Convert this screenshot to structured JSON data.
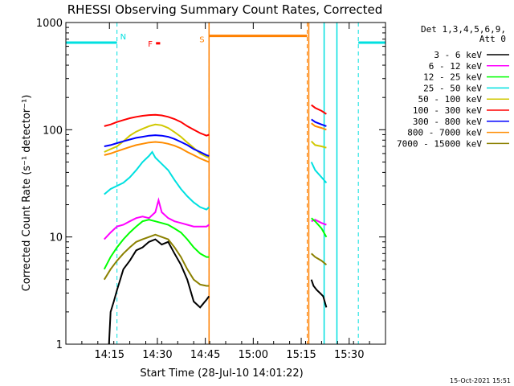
{
  "chart_data": {
    "type": "line",
    "title": "RHESSI Observing Summary Count Rates, Corrected",
    "xlabel": "Start Time (28-Jul-10 14:01:22)",
    "ylabel": "Corrected Count Rate (s⁻¹ detector⁻¹)",
    "yscale": "log",
    "ylim": [
      1,
      1000
    ],
    "xlim_minutes": [
      0,
      100
    ],
    "x_ticks": [
      {
        "label": "14:15",
        "minute": 13.63
      },
      {
        "label": "14:30",
        "minute": 28.63
      },
      {
        "label": "14:45",
        "minute": 43.63
      },
      {
        "label": "15:00",
        "minute": 58.63
      },
      {
        "label": "15:15",
        "minute": 73.63
      },
      {
        "label": "15:30",
        "minute": 88.63
      }
    ],
    "y_ticks": [
      {
        "label": "1",
        "value": 1
      },
      {
        "label": "10",
        "value": 10
      },
      {
        "label": "100",
        "value": 100
      },
      {
        "label": "1000",
        "value": 1000
      }
    ],
    "legend": {
      "placement": "right",
      "header": [
        "Det 1,3,4,5,6,9,",
        "Att 0"
      ]
    },
    "footer_timestamp": "15-Oct-2021 15:51",
    "flags": {
      "night": {
        "label": "N",
        "color": "#00e0e0",
        "value": 650,
        "intervals": [
          [
            0,
            16
          ],
          [
            91.5,
            100
          ]
        ],
        "boundaries": [
          16,
          91.5
        ]
      },
      "saa": {
        "label": "S",
        "color": "#ff8000",
        "value": 750,
        "interval": [
          44.8,
          75.5
        ],
        "boundaries": [
          44.8,
          75.5
        ]
      },
      "flare": {
        "label": "F",
        "color": "#ff0000",
        "value": 640,
        "interval": [
          28.2,
          29.5
        ]
      },
      "eclipse_edges": [
        44.8,
        76.0,
        80.8,
        84.8
      ]
    },
    "series": [
      {
        "name": "3 - 6 keV",
        "color": "#000000",
        "x": [
          13.5,
          14,
          15,
          16,
          17,
          18,
          20,
          22,
          24,
          26,
          28,
          30,
          32,
          34,
          36,
          38,
          40,
          42,
          44,
          44.8,
          76.8,
          77.5,
          78.5,
          79.5,
          80.5,
          81.5
        ],
        "values": [
          1.0,
          2.0,
          2.5,
          3.2,
          4.0,
          5.0,
          6.0,
          7.5,
          8.0,
          9.0,
          9.5,
          8.5,
          9.0,
          7.0,
          5.5,
          4.0,
          2.5,
          2.2,
          2.6,
          2.8,
          4.0,
          3.5,
          3.2,
          3.0,
          2.8,
          2.2
        ]
      },
      {
        "name": "6 - 12 keV",
        "color": "#ff00ff",
        "x": [
          12,
          14,
          16,
          18,
          20,
          22,
          24,
          26,
          28,
          29,
          30,
          32,
          34,
          36,
          38,
          40,
          42,
          44,
          44.8,
          76.8,
          78,
          80,
          81.5
        ],
        "values": [
          9.5,
          11.0,
          12.5,
          13.0,
          14.0,
          15.0,
          15.5,
          15.0,
          17.0,
          22.0,
          17.0,
          15.0,
          14.0,
          13.5,
          13.0,
          12.5,
          12.5,
          12.5,
          13.0,
          14.0,
          14.5,
          13.5,
          13.0
        ]
      },
      {
        "name": "12 - 25 keV",
        "color": "#00ff00",
        "x": [
          12,
          14,
          16,
          18,
          20,
          22,
          24,
          26,
          28,
          30,
          32,
          34,
          36,
          38,
          40,
          42,
          44,
          44.8,
          76.8,
          78,
          80,
          81.5
        ],
        "values": [
          5.0,
          6.5,
          8.0,
          9.5,
          11.0,
          12.5,
          14.0,
          14.5,
          14.0,
          13.5,
          13.0,
          12.0,
          11.0,
          9.5,
          8.0,
          7.0,
          6.5,
          6.5,
          15.0,
          14.0,
          12.0,
          10.0
        ]
      },
      {
        "name": "25 - 50 keV",
        "color": "#00e0e0",
        "x": [
          12,
          14,
          16,
          18,
          20,
          22,
          24,
          26,
          27,
          28,
          30,
          32,
          34,
          36,
          38,
          40,
          42,
          44,
          44.8,
          76.8,
          78,
          80,
          81.5
        ],
        "values": [
          25,
          28,
          30,
          32,
          36,
          42,
          50,
          57,
          62,
          55,
          48,
          42,
          34,
          28,
          24,
          21,
          19,
          18,
          19,
          50,
          42,
          36,
          32
        ]
      },
      {
        "name": "50 - 100 keV",
        "color": "#d0c800",
        "x": [
          12,
          14,
          16,
          18,
          20,
          22,
          24,
          26,
          28,
          30,
          32,
          34,
          36,
          38,
          40,
          42,
          44,
          44.8,
          76.8,
          78,
          80,
          81.5
        ],
        "values": [
          62,
          66,
          70,
          78,
          88,
          96,
          102,
          108,
          112,
          110,
          104,
          95,
          86,
          76,
          68,
          60,
          56,
          55,
          78,
          72,
          70,
          68
        ]
      },
      {
        "name": "100 - 300 keV",
        "color": "#ff0000",
        "x": [
          12,
          14,
          16,
          18,
          20,
          22,
          24,
          26,
          28,
          30,
          32,
          34,
          36,
          38,
          40,
          42,
          44,
          44.8,
          76.8,
          78,
          80,
          81.5
        ],
        "values": [
          108,
          112,
          118,
          123,
          128,
          132,
          135,
          137,
          138,
          136,
          132,
          126,
          118,
          108,
          100,
          93,
          88,
          90,
          170,
          160,
          150,
          140
        ]
      },
      {
        "name": "300 - 800 keV",
        "color": "#0000ff",
        "x": [
          12,
          14,
          16,
          18,
          20,
          22,
          24,
          26,
          28,
          30,
          32,
          34,
          36,
          38,
          40,
          42,
          44,
          44.8,
          76.8,
          78,
          80,
          81.5
        ],
        "values": [
          70,
          72,
          75,
          78,
          81,
          84,
          86,
          88,
          89,
          88,
          86,
          82,
          77,
          72,
          66,
          62,
          58,
          57,
          125,
          118,
          112,
          108
        ]
      },
      {
        "name": "800 - 7000 keV",
        "color": "#ff8c00",
        "x": [
          12,
          14,
          16,
          18,
          20,
          22,
          24,
          26,
          28,
          30,
          32,
          34,
          36,
          38,
          40,
          42,
          44,
          44.8,
          76.8,
          78,
          80,
          81.5
        ],
        "values": [
          58,
          60,
          63,
          66,
          69,
          72,
          74,
          76,
          77,
          76,
          74,
          71,
          67,
          62,
          58,
          54,
          51,
          50,
          115,
          108,
          104,
          100
        ]
      },
      {
        "name": "7000 - 15000 keV",
        "color": "#8b8000",
        "x": [
          12,
          14,
          16,
          18,
          20,
          22,
          24,
          26,
          28,
          30,
          32,
          34,
          36,
          38,
          40,
          42,
          44,
          44.8,
          76.8,
          78,
          80,
          81.5
        ],
        "values": [
          4.0,
          5.0,
          6.0,
          7.0,
          8.0,
          9.0,
          9.5,
          10.0,
          10.5,
          10.0,
          9.5,
          8.0,
          6.5,
          5.0,
          4.0,
          3.6,
          3.5,
          3.5,
          7.0,
          6.5,
          6.0,
          5.5
        ]
      }
    ]
  }
}
